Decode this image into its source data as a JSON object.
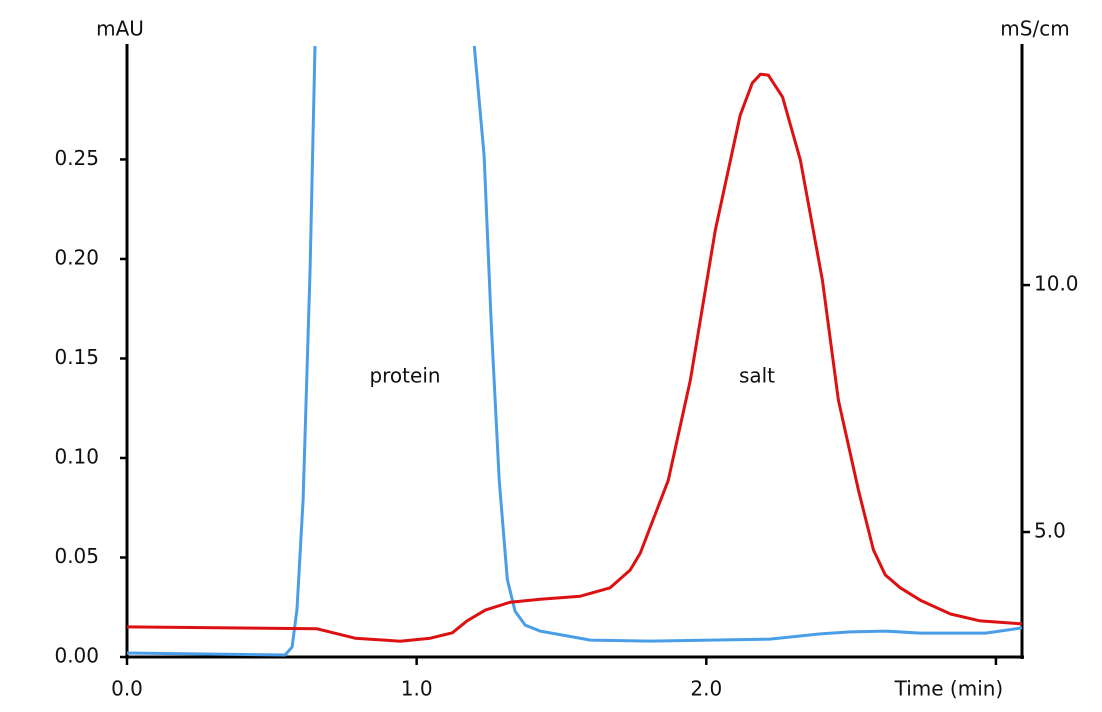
{
  "chart_data": {
    "type": "line",
    "y_label": "mAU",
    "y2_label": "mS/cm",
    "x_label": "Time (min)",
    "xlim": [
      0,
      3.09
    ],
    "xticks": [
      {
        "value": 0,
        "label": "0.0"
      },
      {
        "value": 1,
        "label": "1.0"
      },
      {
        "value": 2,
        "label": "2.0"
      },
      {
        "value": 3,
        "label": "Time (min)"
      }
    ],
    "ylim": [
      0,
      0.307
    ],
    "yticks": [
      {
        "value": 0,
        "label": "0.00"
      },
      {
        "value": 0.05,
        "label": "0.05"
      },
      {
        "value": 0.1,
        "label": "0.10"
      },
      {
        "value": 0.15,
        "label": "0.15"
      },
      {
        "value": 0.2,
        "label": "0.20"
      },
      {
        "value": 0.25,
        "label": "0.25"
      }
    ],
    "y2lim": [
      2.47,
      14.84
    ],
    "y2ticks": [
      {
        "value": 5,
        "label": "5.0"
      },
      {
        "value": 10,
        "label": "10.0"
      }
    ],
    "series": [
      {
        "name": "protein",
        "color": "#4a9ee8",
        "x": [
          0,
          0.546,
          0.57,
          0.587,
          0.608,
          0.632,
          0.649,
          0.92,
          1.199,
          1.233,
          1.257,
          1.285,
          1.313,
          1.34,
          1.375,
          1.427,
          1.6,
          1.806,
          2.22,
          2.394,
          2.497,
          2.618,
          2.739,
          2.964,
          3.09
        ],
        "values": [
          0.002,
          0.001,
          0.005,
          0.024,
          0.079,
          0.195,
          0.307,
          null,
          0.307,
          0.252,
          0.169,
          0.089,
          0.039,
          0.023,
          0.016,
          0.013,
          0.0085,
          0.008,
          0.009,
          0.0116,
          0.0126,
          0.013,
          0.012,
          0.012,
          0.0146
        ]
      },
      {
        "name": "salt",
        "color": "#dd1111",
        "axis": "y2",
        "x": [
          0,
          0.656,
          0.788,
          0.943,
          1.047,
          1.123,
          1.174,
          1.237,
          1.323,
          1.427,
          1.565,
          1.668,
          1.737,
          1.772,
          1.869,
          1.945,
          2.031,
          2.117,
          2.159,
          2.187,
          2.214,
          2.263,
          2.325,
          2.401,
          2.456,
          2.525,
          2.577,
          2.618,
          2.67,
          2.739,
          2.843,
          2.946,
          3.09
        ],
        "values": [
          3.08,
          3.04,
          2.85,
          2.79,
          2.85,
          2.96,
          3.2,
          3.42,
          3.58,
          3.64,
          3.7,
          3.87,
          4.23,
          4.57,
          6.05,
          8.08,
          11.11,
          13.44,
          14.09,
          14.27,
          14.25,
          13.81,
          12.53,
          10.1,
          7.67,
          5.85,
          4.64,
          4.13,
          3.87,
          3.62,
          3.34,
          3.2,
          3.14
        ]
      }
    ]
  }
}
